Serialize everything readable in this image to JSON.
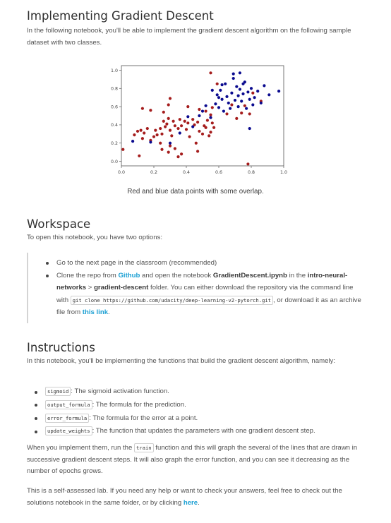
{
  "title": "Implementing Gradient Descent",
  "intro": "In the following notebook, you'll be able to implement the gradient descent algorithm on the following sample dataset with two classes.",
  "figure_caption": "Red and blue data points with some overlap.",
  "chart_data": {
    "type": "scatter",
    "xlim": [
      0.0,
      1.0
    ],
    "ylim": [
      -0.05,
      1.05
    ],
    "x_ticks": [
      "0.0",
      "0.2",
      "0.4",
      "0.6",
      "0.8",
      "1.0"
    ],
    "y_ticks": [
      "0.0",
      "0.2",
      "0.4",
      "0.6",
      "0.8",
      "1.0"
    ],
    "grid": false,
    "colors": {
      "red": "#a51d1d",
      "blue": "#0b0b8f"
    },
    "series": [
      {
        "color_key": "red",
        "points": [
          [
            0.01,
            0.13
          ],
          [
            0.11,
            0.06
          ],
          [
            0.08,
            0.29
          ],
          [
            0.1,
            0.33
          ],
          [
            0.12,
            0.34
          ],
          [
            0.13,
            0.25
          ],
          [
            0.14,
            0.31
          ],
          [
            0.16,
            0.36
          ],
          [
            0.18,
            0.23
          ],
          [
            0.2,
            0.27
          ],
          [
            0.21,
            0.34
          ],
          [
            0.22,
            0.29
          ],
          [
            0.24,
            0.36
          ],
          [
            0.25,
            0.3
          ],
          [
            0.26,
            0.44
          ],
          [
            0.27,
            0.38
          ],
          [
            0.28,
            0.41
          ],
          [
            0.29,
            0.47
          ],
          [
            0.3,
            0.34
          ],
          [
            0.31,
            0.28
          ],
          [
            0.32,
            0.44
          ],
          [
            0.33,
            0.39
          ],
          [
            0.35,
            0.36
          ],
          [
            0.36,
            0.46
          ],
          [
            0.37,
            0.39
          ],
          [
            0.39,
            0.44
          ],
          [
            0.4,
            0.35
          ],
          [
            0.41,
            0.42
          ],
          [
            0.42,
            0.27
          ],
          [
            0.44,
            0.46
          ],
          [
            0.45,
            0.4
          ],
          [
            0.46,
            0.2
          ],
          [
            0.47,
            0.43
          ],
          [
            0.48,
            0.33
          ],
          [
            0.5,
            0.3
          ],
          [
            0.51,
            0.39
          ],
          [
            0.52,
            0.37
          ],
          [
            0.53,
            0.45
          ],
          [
            0.54,
            0.28
          ],
          [
            0.55,
            0.32
          ],
          [
            0.56,
            0.42
          ],
          [
            0.57,
            0.37
          ],
          [
            0.13,
            0.58
          ],
          [
            0.18,
            0.56
          ],
          [
            0.26,
            0.54
          ],
          [
            0.29,
            0.62
          ],
          [
            0.3,
            0.69
          ],
          [
            0.41,
            0.6
          ],
          [
            0.25,
            0.13
          ],
          [
            0.29,
            0.1
          ],
          [
            0.3,
            0.17
          ],
          [
            0.35,
            0.05
          ],
          [
            0.37,
            0.08
          ],
          [
            0.47,
            0.11
          ],
          [
            0.48,
            0.57
          ],
          [
            0.52,
            0.55
          ],
          [
            0.55,
            0.51
          ],
          [
            0.56,
            0.59
          ],
          [
            0.65,
            0.52
          ],
          [
            0.68,
            0.62
          ],
          [
            0.71,
            0.47
          ],
          [
            0.74,
            0.53
          ],
          [
            0.76,
            0.61
          ],
          [
            0.79,
            0.52
          ],
          [
            0.81,
            0.75
          ],
          [
            0.86,
            0.66
          ],
          [
            0.55,
            0.97
          ],
          [
            0.59,
            0.85
          ],
          [
            0.78,
            -0.03
          ],
          [
            0.33,
            0.14
          ],
          [
            0.24,
            0.2
          ]
        ]
      },
      {
        "color_key": "blue",
        "points": [
          [
            0.07,
            0.22
          ],
          [
            0.18,
            0.21
          ],
          [
            0.3,
            0.2
          ],
          [
            0.36,
            0.31
          ],
          [
            0.41,
            0.49
          ],
          [
            0.44,
            0.38
          ],
          [
            0.48,
            0.5
          ],
          [
            0.5,
            0.55
          ],
          [
            0.52,
            0.61
          ],
          [
            0.55,
            0.48
          ],
          [
            0.58,
            0.63
          ],
          [
            0.59,
            0.73
          ],
          [
            0.6,
            0.59
          ],
          [
            0.61,
            0.78
          ],
          [
            0.62,
            0.68
          ],
          [
            0.63,
            0.55
          ],
          [
            0.64,
            0.85
          ],
          [
            0.65,
            0.71
          ],
          [
            0.66,
            0.64
          ],
          [
            0.67,
            0.58
          ],
          [
            0.68,
            0.75
          ],
          [
            0.69,
            0.91
          ],
          [
            0.7,
            0.67
          ],
          [
            0.71,
            0.82
          ],
          [
            0.72,
            0.72
          ],
          [
            0.72,
            0.6
          ],
          [
            0.73,
            0.79
          ],
          [
            0.74,
            0.66
          ],
          [
            0.75,
            0.74
          ],
          [
            0.76,
            0.87
          ],
          [
            0.77,
            0.58
          ],
          [
            0.78,
            0.76
          ],
          [
            0.79,
            0.68
          ],
          [
            0.8,
            0.8
          ],
          [
            0.81,
            0.62
          ],
          [
            0.82,
            0.7
          ],
          [
            0.84,
            0.77
          ],
          [
            0.86,
            0.64
          ],
          [
            0.88,
            0.83
          ],
          [
            0.91,
            0.73
          ],
          [
            0.97,
            0.77
          ],
          [
            0.79,
            0.36
          ],
          [
            0.69,
            0.96
          ],
          [
            0.73,
            0.97
          ],
          [
            0.75,
            0.85
          ],
          [
            0.62,
            0.84
          ],
          [
            0.56,
            0.78
          ],
          [
            0.6,
            0.7
          ]
        ]
      }
    ]
  },
  "workspace": {
    "heading": "Workspace",
    "text": "To open this notebook, you have two options:",
    "bullet1": "Go to the next page in the classroom (recommended)",
    "bullet2": {
      "t1": "Clone the repo from ",
      "link1": "Github",
      "t2": " and open the notebook ",
      "bold1": "GradientDescent.ipynb",
      "t3": " in the ",
      "bold2": "intro-neural-networks",
      "t4": " > ",
      "bold3": "gradient-descent",
      "t5": " folder. You can either download the repository via the command line with ",
      "code": "git clone https://github.com/udacity/deep-learning-v2-pytorch.git",
      "t6": ", or download it as an archive file from ",
      "link2": "this link",
      "t7": "."
    }
  },
  "instructions": {
    "heading": "Instructions",
    "text": "In this notebook, you'll be implementing the functions that build the gradient descent algorithm, namely:",
    "items": [
      {
        "code": "sigmoid",
        "desc": ": The sigmoid activation function."
      },
      {
        "code": "output_formula",
        "desc": ": The formula for the prediction."
      },
      {
        "code": "error_formula",
        "desc": ": The formula for the error at a point."
      },
      {
        "code": "update_weights",
        "desc": ": The function that updates the parameters with one gradient descent step."
      }
    ],
    "para1": {
      "t1": "When you implement them, run the ",
      "code": "train",
      "t2": " function and this will graph the several of the lines that are drawn in successive gradient descent steps. It will also graph the error function, and you can see it decreasing as the number of epochs grows."
    },
    "para2": {
      "t1": "This is a self-assessed lab. If you need any help or want to check your answers, feel free to check out the solutions notebook in the same folder, or by clicking ",
      "link": "here",
      "t2": "."
    }
  }
}
